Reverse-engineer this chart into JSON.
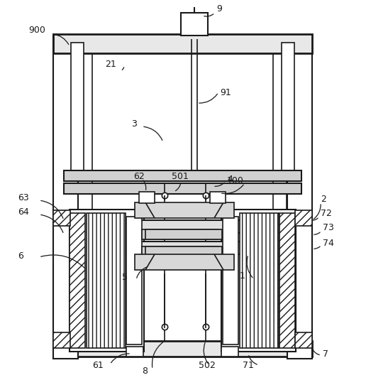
{
  "bg_color": "#ffffff",
  "line_color": "#1a1a1a",
  "fig_width": 5.16,
  "fig_height": 5.35
}
